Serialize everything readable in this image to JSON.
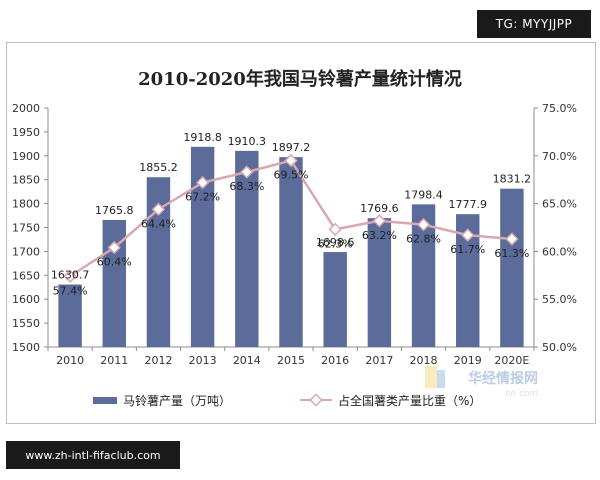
{
  "badges": {
    "top_right": "TG: MYYJJPP",
    "bottom_left": "www.zh-intl-fifaclub.com"
  },
  "watermark": {
    "text": "华经情报网",
    "sub": "on.com"
  },
  "chart_data": {
    "type": "bar+line",
    "title": "2010-2020年我国马铃薯产量统计情况",
    "categories": [
      "2010",
      "2011",
      "2012",
      "2013",
      "2014",
      "2015",
      "2016",
      "2017",
      "2018",
      "2019",
      "2020E"
    ],
    "series": [
      {
        "name": "马铃薯产量（万吨）",
        "type": "bar",
        "axis": "left",
        "color": "#5b6b9a",
        "values": [
          1630.7,
          1765.8,
          1855.2,
          1918.8,
          1910.3,
          1897.2,
          1698.6,
          1769.6,
          1798.4,
          1777.9,
          1831.2
        ],
        "labels": [
          "1630.7",
          "1765.8",
          "1855.2",
          "1918.8",
          "1910.3",
          "1897.2",
          "1698.6",
          "1769.6",
          "1798.4",
          "1777.9",
          "1831.2"
        ]
      },
      {
        "name": "占全国薯类产量比重（%）",
        "type": "line",
        "axis": "right",
        "color": "#d9a7b0",
        "values": [
          57.4,
          60.4,
          64.4,
          67.2,
          68.3,
          69.5,
          62.3,
          63.2,
          62.8,
          61.7,
          61.3
        ],
        "labels": [
          "57.4%",
          "60.4%",
          "64.4%",
          "67.2%",
          "68.3%",
          "69.5%",
          "62.3%",
          "63.2%",
          "62.8%",
          "61.7%",
          "61.3%"
        ]
      }
    ],
    "y_left": {
      "min": 1500,
      "max": 2000,
      "step": 50,
      "ticks": [
        "1500",
        "1550",
        "1600",
        "1650",
        "1700",
        "1750",
        "1800",
        "1850",
        "1900",
        "1950",
        "2000"
      ]
    },
    "y_right": {
      "min": 50,
      "max": 75,
      "step": 5,
      "ticks": [
        "50.0%",
        "55.0%",
        "60.0%",
        "65.0%",
        "70.0%",
        "75.0%"
      ]
    },
    "grid": false,
    "legend": "bottom"
  }
}
